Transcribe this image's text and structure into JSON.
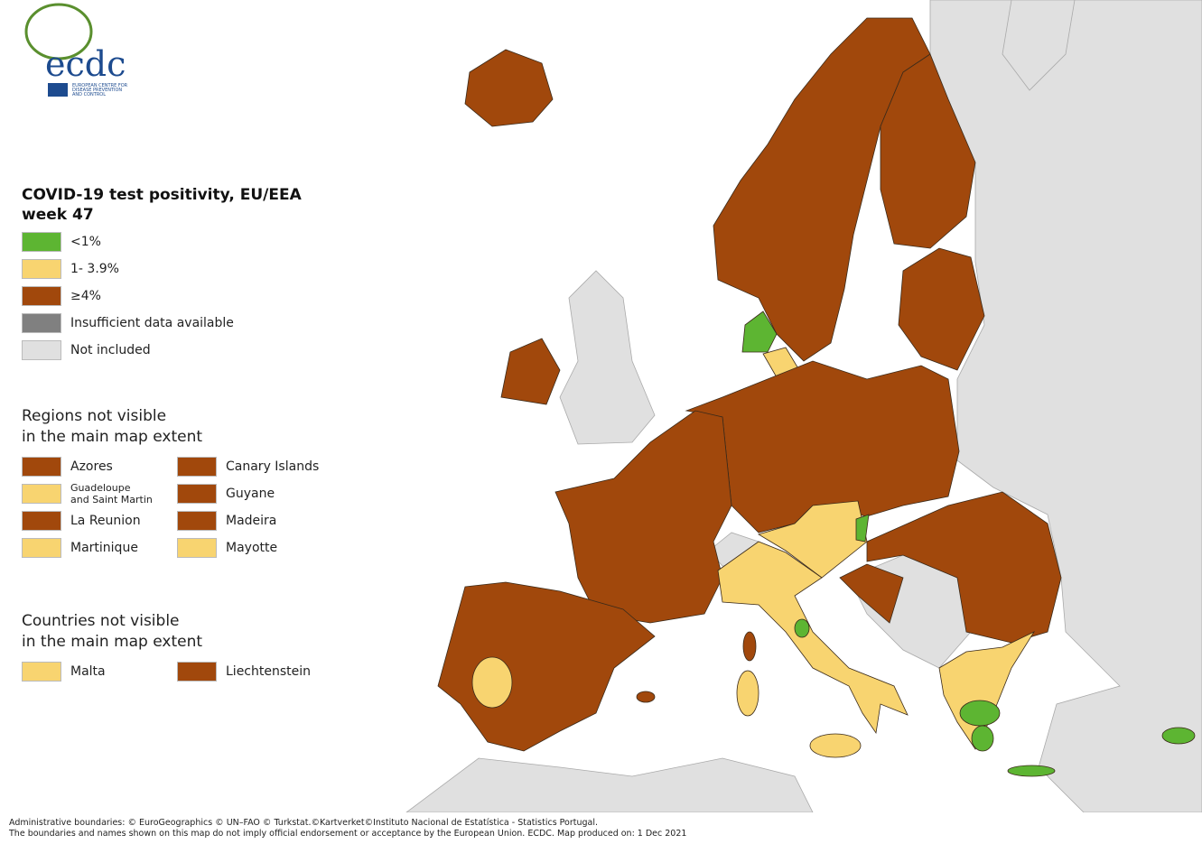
{
  "logo": {
    "text": "ecdc",
    "subtitle_lines": [
      "EUROPEAN CENTRE FOR",
      "DISEASE PREVENTION",
      "AND CONTROL"
    ]
  },
  "legend": {
    "title_lines": [
      "COVID-19 test positivity, EU/EEA",
      "week 47"
    ],
    "items": [
      {
        "label": "<1%",
        "color": "#5db532"
      },
      {
        "label": "1- 3.9%",
        "color": "#f8d470"
      },
      {
        "label": "≥4%",
        "color": "#a1480c"
      },
      {
        "label": "Insufficient data available",
        "color": "#808080"
      },
      {
        "label": "Not included",
        "color": "#e0e0e0"
      }
    ]
  },
  "regions": {
    "title_lines": [
      "Regions not visible",
      "in the main map extent"
    ],
    "items": [
      {
        "lines": [
          "Azores"
        ],
        "color": "#a1480c"
      },
      {
        "lines": [
          "Canary Islands"
        ],
        "color": "#a1480c"
      },
      {
        "lines": [
          "Guadeloupe",
          "and Saint Martin"
        ],
        "color": "#f8d470"
      },
      {
        "lines": [
          "Guyane"
        ],
        "color": "#a1480c"
      },
      {
        "lines": [
          "La Reunion"
        ],
        "color": "#a1480c"
      },
      {
        "lines": [
          "Madeira"
        ],
        "color": "#a1480c"
      },
      {
        "lines": [
          "Martinique"
        ],
        "color": "#f8d470"
      },
      {
        "lines": [
          "Mayotte"
        ],
        "color": "#f8d470"
      }
    ]
  },
  "countries": {
    "title_lines": [
      "Countries not visible",
      "in the main map extent"
    ],
    "items": [
      {
        "lines": [
          "Malta"
        ],
        "color": "#f8d470"
      },
      {
        "lines": [
          "Liechtenstein"
        ],
        "color": "#a1480c"
      }
    ]
  },
  "footer": {
    "lines": [
      "Administrative boundaries: © EuroGeographics © UN–FAO © Turkstat.©Kartverket©Instituto Nacional de Estatística - Statistics Portugal.",
      "The boundaries and names shown on this map do not imply official endorsement or acceptance by the European Union. ECDC. Map produced on: 1 Dec 2021"
    ]
  }
}
